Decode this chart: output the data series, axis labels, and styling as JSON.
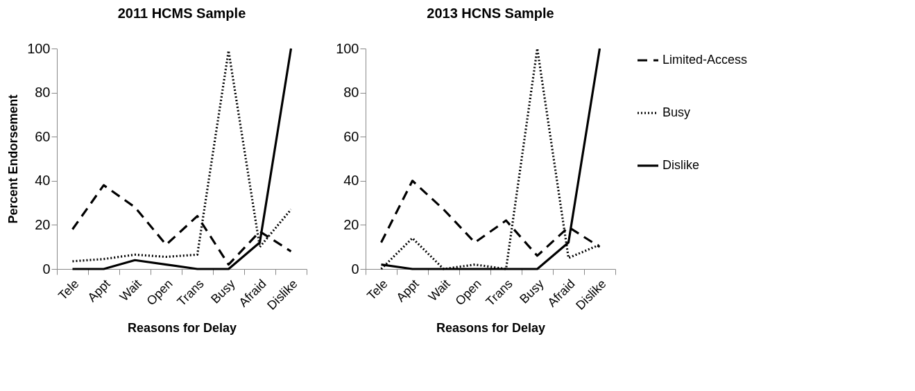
{
  "chart_data": [
    {
      "type": "line",
      "title": "2011 HCMS Sample",
      "xlabel": "Reasons for Delay",
      "ylabel": "Percent Endorsement",
      "categories": [
        "Tele",
        "Appt",
        "Wait",
        "Open",
        "Trans",
        "Busy",
        "Afraid",
        "Dislike"
      ],
      "ylim": [
        0,
        100
      ],
      "yticks": [
        0,
        20,
        40,
        60,
        80,
        100
      ],
      "grid": false,
      "marker": "none",
      "series": [
        {
          "color": "#000000",
          "line_style": "dashed",
          "values": [
            18,
            38,
            28,
            11,
            24,
            2,
            17,
            8
          ]
        },
        {
          "color": "#000000",
          "line_style": "dotted",
          "values": [
            3.5,
            4.5,
            6.5,
            5.5,
            6.5,
            99,
            10,
            27
          ]
        },
        {
          "color": "#000000",
          "line_style": "solid",
          "values": [
            0,
            0,
            4,
            2,
            0,
            0,
            12,
            100
          ]
        }
      ]
    },
    {
      "type": "line",
      "title": "2013 HCNS Sample",
      "xlabel": "Reasons for Delay",
      "categories": [
        "Tele",
        "Appt",
        "Wait",
        "Open",
        "Trans",
        "Busy",
        "Afraid",
        "Dislike"
      ],
      "ylim": [
        0,
        100
      ],
      "yticks": [
        0,
        20,
        40,
        60,
        80,
        100
      ],
      "grid": false,
      "legend": "right",
      "marker": "none",
      "series": [
        {
          "name": "Limited-Access",
          "color": "#000000",
          "line_style": "dashed",
          "values": [
            12,
            40,
            27,
            12,
            22,
            6,
            19,
            10
          ]
        },
        {
          "name": "Busy",
          "color": "#000000",
          "line_style": "dotted",
          "values": [
            0,
            14,
            0,
            2,
            0,
            100,
            5,
            11
          ]
        },
        {
          "name": "Dislike",
          "color": "#000000",
          "line_style": "solid",
          "values": [
            2,
            0,
            0,
            0,
            0,
            0,
            12,
            100
          ]
        }
      ]
    }
  ]
}
